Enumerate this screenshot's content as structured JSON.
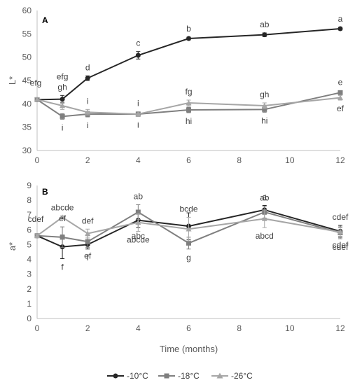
{
  "chart_data": [
    {
      "type": "line",
      "panel_label": "A",
      "ylabel": "L*",
      "xlabel": "",
      "xlim": [
        0,
        12
      ],
      "ylim": [
        30,
        60
      ],
      "x_ticks": [
        0,
        2,
        4,
        6,
        8,
        10,
        12
      ],
      "y_ticks": [
        30,
        35,
        40,
        45,
        50,
        55,
        60
      ],
      "grid": false,
      "series": [
        {
          "name": "-10°C",
          "color": "#262626",
          "marker": "circle",
          "points": [
            {
              "x": 0,
              "y": 40.9,
              "err": 0.4,
              "label": "efg",
              "label_pos": "upper-left"
            },
            {
              "x": 1,
              "y": 41.0,
              "err": 0.8,
              "label": "efg\ngh",
              "label_pos": "above"
            },
            {
              "x": 2,
              "y": 45.5,
              "err": 0.5,
              "label": "d",
              "label_pos": "above"
            },
            {
              "x": 4,
              "y": 50.4,
              "err": 0.8,
              "label": "c",
              "label_pos": "above"
            },
            {
              "x": 6,
              "y": 54.0,
              "err": 0.3,
              "label": "b",
              "label_pos": "above"
            },
            {
              "x": 9,
              "y": 54.8,
              "err": 0.4,
              "label": "ab",
              "label_pos": "above"
            },
            {
              "x": 12,
              "y": 56.1,
              "err": 0.3,
              "label": "a",
              "label_pos": "above"
            }
          ]
        },
        {
          "name": "-18°C",
          "color": "#7f7f7f",
          "marker": "square",
          "points": [
            {
              "x": 0,
              "y": 40.9,
              "err": 0.4
            },
            {
              "x": 1,
              "y": 37.3,
              "err": 0.6,
              "label": "i",
              "label_pos": "below"
            },
            {
              "x": 2,
              "y": 37.8,
              "err": 0.6,
              "label": "i",
              "label_pos": "below"
            },
            {
              "x": 4,
              "y": 37.8,
              "err": 0.5,
              "label": "i",
              "label_pos": "below"
            },
            {
              "x": 6,
              "y": 38.7,
              "err": 0.6,
              "label": "hi",
              "label_pos": "below"
            },
            {
              "x": 9,
              "y": 38.8,
              "err": 0.6,
              "label": "hi",
              "label_pos": "below"
            },
            {
              "x": 12,
              "y": 42.4,
              "err": 0.4,
              "label": "e",
              "label_pos": "above"
            }
          ]
        },
        {
          "name": "-26°C",
          "color": "#a6a6a6",
          "marker": "triangle",
          "points": [
            {
              "x": 0,
              "y": 40.9,
              "err": 0.4
            },
            {
              "x": 1,
              "y": 39.6,
              "err": 0.8
            },
            {
              "x": 2,
              "y": 38.2,
              "err": 0.6,
              "label": "i",
              "label_pos": "above"
            },
            {
              "x": 4,
              "y": 37.8,
              "err": 0.5,
              "label": "i",
              "label_pos": "above"
            },
            {
              "x": 6,
              "y": 40.2,
              "err": 0.6,
              "label": "fg",
              "label_pos": "above"
            },
            {
              "x": 9,
              "y": 39.6,
              "err": 0.6,
              "label": "gh",
              "label_pos": "above"
            },
            {
              "x": 12,
              "y": 41.3,
              "err": 0.5,
              "label": "ef",
              "label_pos": "below"
            }
          ]
        }
      ]
    },
    {
      "type": "line",
      "panel_label": "B",
      "ylabel": "a*",
      "xlabel": "Time (months)",
      "xlim": [
        0,
        12
      ],
      "ylim": [
        0,
        9
      ],
      "x_ticks": [
        0,
        2,
        4,
        6,
        8,
        10,
        12
      ],
      "y_ticks": [
        0,
        1,
        2,
        3,
        4,
        5,
        6,
        7,
        8,
        9
      ],
      "grid": false,
      "legend": {
        "position": "bottom",
        "entries": [
          "-10°C",
          "-18°C",
          "-26°C"
        ]
      },
      "series": [
        {
          "name": "-10°C",
          "color": "#262626",
          "marker": "circle",
          "points": [
            {
              "x": 0,
              "y": 5.6,
              "err": 0.1
            },
            {
              "x": 1,
              "y": 4.85,
              "err": 0.8,
              "label": "f",
              "label_pos": "below"
            },
            {
              "x": 2,
              "y": 5.0,
              "err": 0.3,
              "label": "f",
              "label_pos": "below"
            },
            {
              "x": 4,
              "y": 6.65,
              "err": 0.5,
              "label": "abc",
              "label_pos": "below"
            },
            {
              "x": 6,
              "y": 6.25,
              "err": 0.9
            },
            {
              "x": 9,
              "y": 7.35,
              "err": 0.3,
              "label": "a",
              "label_pos": "above"
            },
            {
              "x": 12,
              "y": 5.9,
              "err": 0.4,
              "label": "cdef",
              "label_pos": "above"
            }
          ]
        },
        {
          "name": "-18°C",
          "color": "#7f7f7f",
          "marker": "square",
          "points": [
            {
              "x": 0,
              "y": 5.6,
              "err": 0.1,
              "label": "cdef",
              "label_pos": "upper-left"
            },
            {
              "x": 1,
              "y": 5.5,
              "err": 0.7,
              "label": "ef",
              "label_pos": "above"
            },
            {
              "x": 2,
              "y": 5.2,
              "err": 0.4,
              "label": "ef",
              "label_pos": "below"
            },
            {
              "x": 4,
              "y": 7.2,
              "err": 0.5,
              "label": "ab",
              "label_pos": "above"
            },
            {
              "x": 6,
              "y": 5.1,
              "err": 0.4,
              "label": "g",
              "label_pos": "below"
            },
            {
              "x": 9,
              "y": 7.2,
              "err": 0.4,
              "label": "ab",
              "label_pos": "above"
            },
            {
              "x": 12,
              "y": 5.8,
              "err": 0.4,
              "label": "cdef",
              "label_pos": "below"
            }
          ]
        },
        {
          "name": "-26°C",
          "color": "#a6a6a6",
          "marker": "triangle",
          "points": [
            {
              "x": 0,
              "y": 5.6,
              "err": 0.1
            },
            {
              "x": 1,
              "y": 6.85,
              "err": 0.1,
              "label": "abcde",
              "label_pos": "above"
            },
            {
              "x": 2,
              "y": 5.75,
              "err": 0.3,
              "label": "def",
              "label_pos": "above"
            },
            {
              "x": 4,
              "y": 6.5,
              "err": 0.6,
              "label": "abcde",
              "label_pos": "below"
            },
            {
              "x": 6,
              "y": 6.05,
              "err": 0.8,
              "label": "bcde",
              "label_pos": "above"
            },
            {
              "x": 9,
              "y": 6.75,
              "err": 0.6,
              "label": "abcd",
              "label_pos": "below"
            },
            {
              "x": 12,
              "y": 5.85,
              "err": 0.3,
              "label": "cdef",
              "label_pos": "below"
            }
          ]
        }
      ]
    }
  ]
}
